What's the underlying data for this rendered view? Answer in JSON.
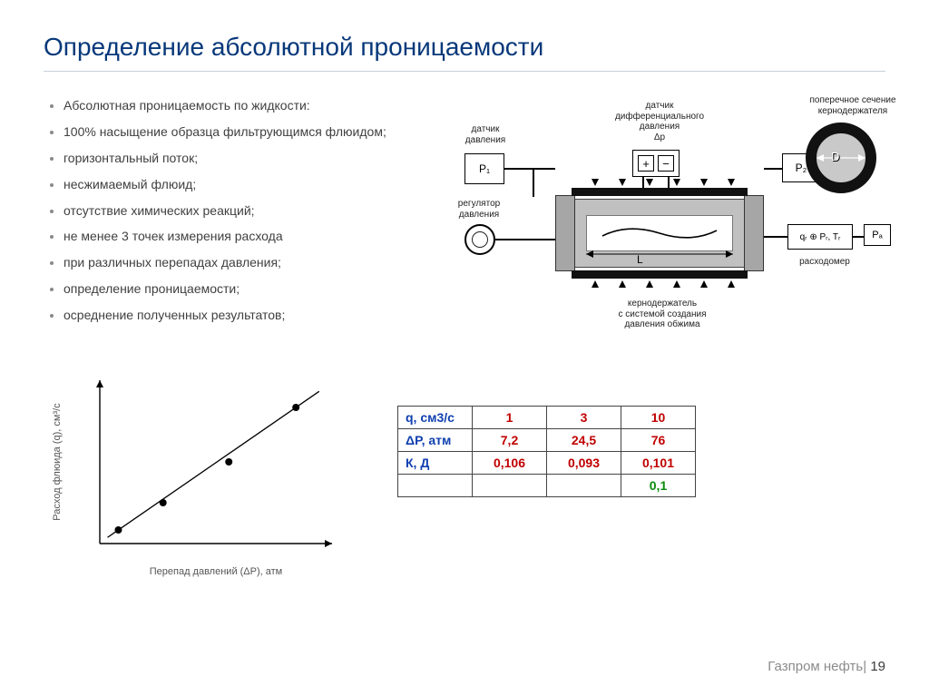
{
  "title": "Определение абсолютной проницаемости",
  "bullets": [
    "Абсолютная проницаемость по жидкости:",
    "100% насыщение образца фильтрующимся флюидом;",
    "горизонтальный поток;",
    "несжимаемый флюид;",
    "отсутствие химических реакций;",
    "не менее 3 точек измерения расхода",
    "при различных перепадах давления;",
    "определение проницаемости;",
    "осреднение полученных результатов;"
  ],
  "diagram": {
    "labels": {
      "pressure_sensor": "датчик\nдавления",
      "diff_pressure_sensor": "датчик\nдифференциального\nдавления\nΔp",
      "cross_section": "поперечное сечение\nкернодержателя",
      "regulator": "регулятор\nдавления",
      "flowmeter": "расходомер",
      "holder": "кернодержатель\nс системой создания\nдавления обжима"
    },
    "boxes": {
      "p1": "P₁",
      "p2": "P₂",
      "qf": "qᵣ ⊕ Pᵣ, Tᵣ",
      "pa": "Pₐ",
      "dp_plus": "+",
      "dp_minus": "−",
      "L": "L",
      "D": "D"
    },
    "colors": {
      "steel": "#c0c0c0",
      "dark": "#111111",
      "line": "#000000",
      "bg": "#ffffff"
    }
  },
  "chart": {
    "type": "scatter-line",
    "xlabel": "Перепад давлений (ΔP), атм",
    "ylabel": "Расход флюида (q), см³/с",
    "points": [
      {
        "x": 7.2,
        "y": 1
      },
      {
        "x": 24.5,
        "y": 3
      },
      {
        "x": 50,
        "y": 6
      },
      {
        "x": 76,
        "y": 10
      }
    ],
    "xlim": [
      0,
      90
    ],
    "ylim": [
      0,
      12
    ],
    "axis_color": "#000000",
    "marker": "circle",
    "marker_fill": "#000000",
    "marker_size": 4,
    "line_color": "#000000",
    "line_width": 1.3,
    "background": "#ffffff",
    "label_fontsize": 11
  },
  "table": {
    "headers": [
      "q, см3/с",
      "ΔP, атм",
      "К, Д"
    ],
    "columns": [
      [
        "1",
        "3",
        "10"
      ],
      [
        "7,2",
        "24,5",
        "76"
      ],
      [
        "0,106",
        "0,093",
        "0,101"
      ]
    ],
    "summary": "0,1",
    "header_color": "#1040b0",
    "value_color": "#c00000",
    "summary_color": "#0a8a0a",
    "border_color": "#444444"
  },
  "footer": {
    "company": "Газпром нефть",
    "page": "19"
  }
}
